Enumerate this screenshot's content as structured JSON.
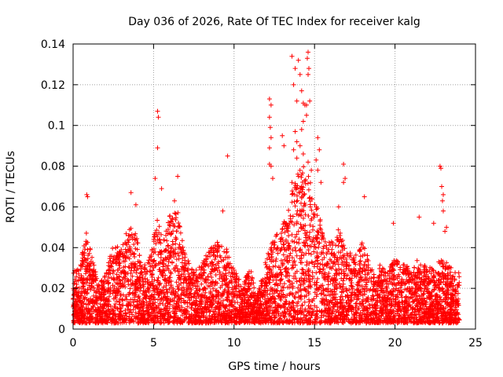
{
  "chart_data": {
    "type": "scatter",
    "title": "Day 036 of 2026, Rate Of TEC Index for receiver kalg",
    "xlabel": "GPS time / hours",
    "ylabel": "ROTI / TECUs",
    "xlim": [
      0,
      25
    ],
    "ylim": [
      0,
      0.14
    ],
    "grid": true,
    "legend": "none",
    "marker": "+",
    "color": "#ff0000",
    "x_ticks": [
      0,
      5,
      10,
      15,
      20,
      25
    ],
    "x_tick_labels": [
      "0",
      "5",
      "10",
      "15",
      "20",
      "25"
    ],
    "y_ticks": [
      0,
      0.02,
      0.04,
      0.06,
      0.08,
      0.1,
      0.12,
      0.14
    ],
    "y_tick_labels": [
      "0",
      "0.02",
      "0.04",
      "0.06",
      "0.08",
      "0.1",
      "0.12",
      "0.14"
    ],
    "series": [
      {
        "name": "ROTI",
        "note": "dense point cloud generated from an envelope; outliers listed explicitly",
        "x_range": [
          0,
          24
        ],
        "baseline_level": 0.012,
        "envelope": [
          [
            0.0,
            0.028
          ],
          [
            0.5,
            0.035
          ],
          [
            0.8,
            0.048
          ],
          [
            1.2,
            0.035
          ],
          [
            1.6,
            0.022
          ],
          [
            2.0,
            0.028
          ],
          [
            2.6,
            0.045
          ],
          [
            3.0,
            0.04
          ],
          [
            3.5,
            0.052
          ],
          [
            3.9,
            0.048
          ],
          [
            4.3,
            0.03
          ],
          [
            4.8,
            0.036
          ],
          [
            5.2,
            0.055
          ],
          [
            5.6,
            0.045
          ],
          [
            6.0,
            0.056
          ],
          [
            6.5,
            0.058
          ],
          [
            7.0,
            0.035
          ],
          [
            7.5,
            0.03
          ],
          [
            8.0,
            0.032
          ],
          [
            8.5,
            0.04
          ],
          [
            9.0,
            0.045
          ],
          [
            9.5,
            0.04
          ],
          [
            10.0,
            0.03
          ],
          [
            10.5,
            0.022
          ],
          [
            11.0,
            0.03
          ],
          [
            11.5,
            0.018
          ],
          [
            12.0,
            0.035
          ],
          [
            12.5,
            0.045
          ],
          [
            13.0,
            0.05
          ],
          [
            13.5,
            0.065
          ],
          [
            14.0,
            0.08
          ],
          [
            14.5,
            0.08
          ],
          [
            15.0,
            0.065
          ],
          [
            15.5,
            0.05
          ],
          [
            16.0,
            0.042
          ],
          [
            16.5,
            0.05
          ],
          [
            17.0,
            0.04
          ],
          [
            17.5,
            0.035
          ],
          [
            18.0,
            0.045
          ],
          [
            18.5,
            0.03
          ],
          [
            19.0,
            0.032
          ],
          [
            19.5,
            0.028
          ],
          [
            20.0,
            0.035
          ],
          [
            20.5,
            0.032
          ],
          [
            21.0,
            0.03
          ],
          [
            21.5,
            0.035
          ],
          [
            22.0,
            0.03
          ],
          [
            22.5,
            0.032
          ],
          [
            23.0,
            0.035
          ],
          [
            23.5,
            0.03
          ],
          [
            24.0,
            0.028
          ]
        ],
        "outliers": [
          [
            0.85,
            0.066
          ],
          [
            0.9,
            0.065
          ],
          [
            3.6,
            0.067
          ],
          [
            3.9,
            0.061
          ],
          [
            5.25,
            0.107
          ],
          [
            5.3,
            0.104
          ],
          [
            5.25,
            0.089
          ],
          [
            5.1,
            0.074
          ],
          [
            5.5,
            0.069
          ],
          [
            6.5,
            0.075
          ],
          [
            6.3,
            0.063
          ],
          [
            9.3,
            0.058
          ],
          [
            9.6,
            0.085
          ],
          [
            12.2,
            0.113
          ],
          [
            12.3,
            0.11
          ],
          [
            12.2,
            0.104
          ],
          [
            12.25,
            0.099
          ],
          [
            12.3,
            0.094
          ],
          [
            12.2,
            0.089
          ],
          [
            12.2,
            0.081
          ],
          [
            12.3,
            0.08
          ],
          [
            12.4,
            0.074
          ],
          [
            13.0,
            0.095
          ],
          [
            13.1,
            0.09
          ],
          [
            13.6,
            0.134
          ],
          [
            13.8,
            0.128
          ],
          [
            13.7,
            0.12
          ],
          [
            13.9,
            0.112
          ],
          [
            14.0,
            0.132
          ],
          [
            14.1,
            0.125
          ],
          [
            14.2,
            0.117
          ],
          [
            14.3,
            0.111
          ],
          [
            14.4,
            0.11
          ],
          [
            14.5,
            0.11
          ],
          [
            14.6,
            0.136
          ],
          [
            14.55,
            0.133
          ],
          [
            14.65,
            0.128
          ],
          [
            14.6,
            0.125
          ],
          [
            14.7,
            0.112
          ],
          [
            14.5,
            0.105
          ],
          [
            14.3,
            0.102
          ],
          [
            14.2,
            0.098
          ],
          [
            13.8,
            0.097
          ],
          [
            13.9,
            0.092
          ],
          [
            14.1,
            0.09
          ],
          [
            13.7,
            0.088
          ],
          [
            13.9,
            0.084
          ],
          [
            14.3,
            0.086
          ],
          [
            14.6,
            0.082
          ],
          [
            14.8,
            0.078
          ],
          [
            14.0,
            0.075
          ],
          [
            13.6,
            0.072
          ],
          [
            14.2,
            0.07
          ],
          [
            15.2,
            0.094
          ],
          [
            15.3,
            0.088
          ],
          [
            15.1,
            0.083
          ],
          [
            15.2,
            0.078
          ],
          [
            15.4,
            0.072
          ],
          [
            16.5,
            0.06
          ],
          [
            16.8,
            0.081
          ],
          [
            16.9,
            0.074
          ],
          [
            16.8,
            0.072
          ],
          [
            18.1,
            0.065
          ],
          [
            19.9,
            0.052
          ],
          [
            21.5,
            0.055
          ],
          [
            22.4,
            0.052
          ],
          [
            22.8,
            0.08
          ],
          [
            22.85,
            0.079
          ],
          [
            22.9,
            0.07
          ],
          [
            23.0,
            0.066
          ],
          [
            22.95,
            0.063
          ],
          [
            23.0,
            0.058
          ],
          [
            23.2,
            0.05
          ],
          [
            23.1,
            0.048
          ]
        ]
      }
    ]
  }
}
